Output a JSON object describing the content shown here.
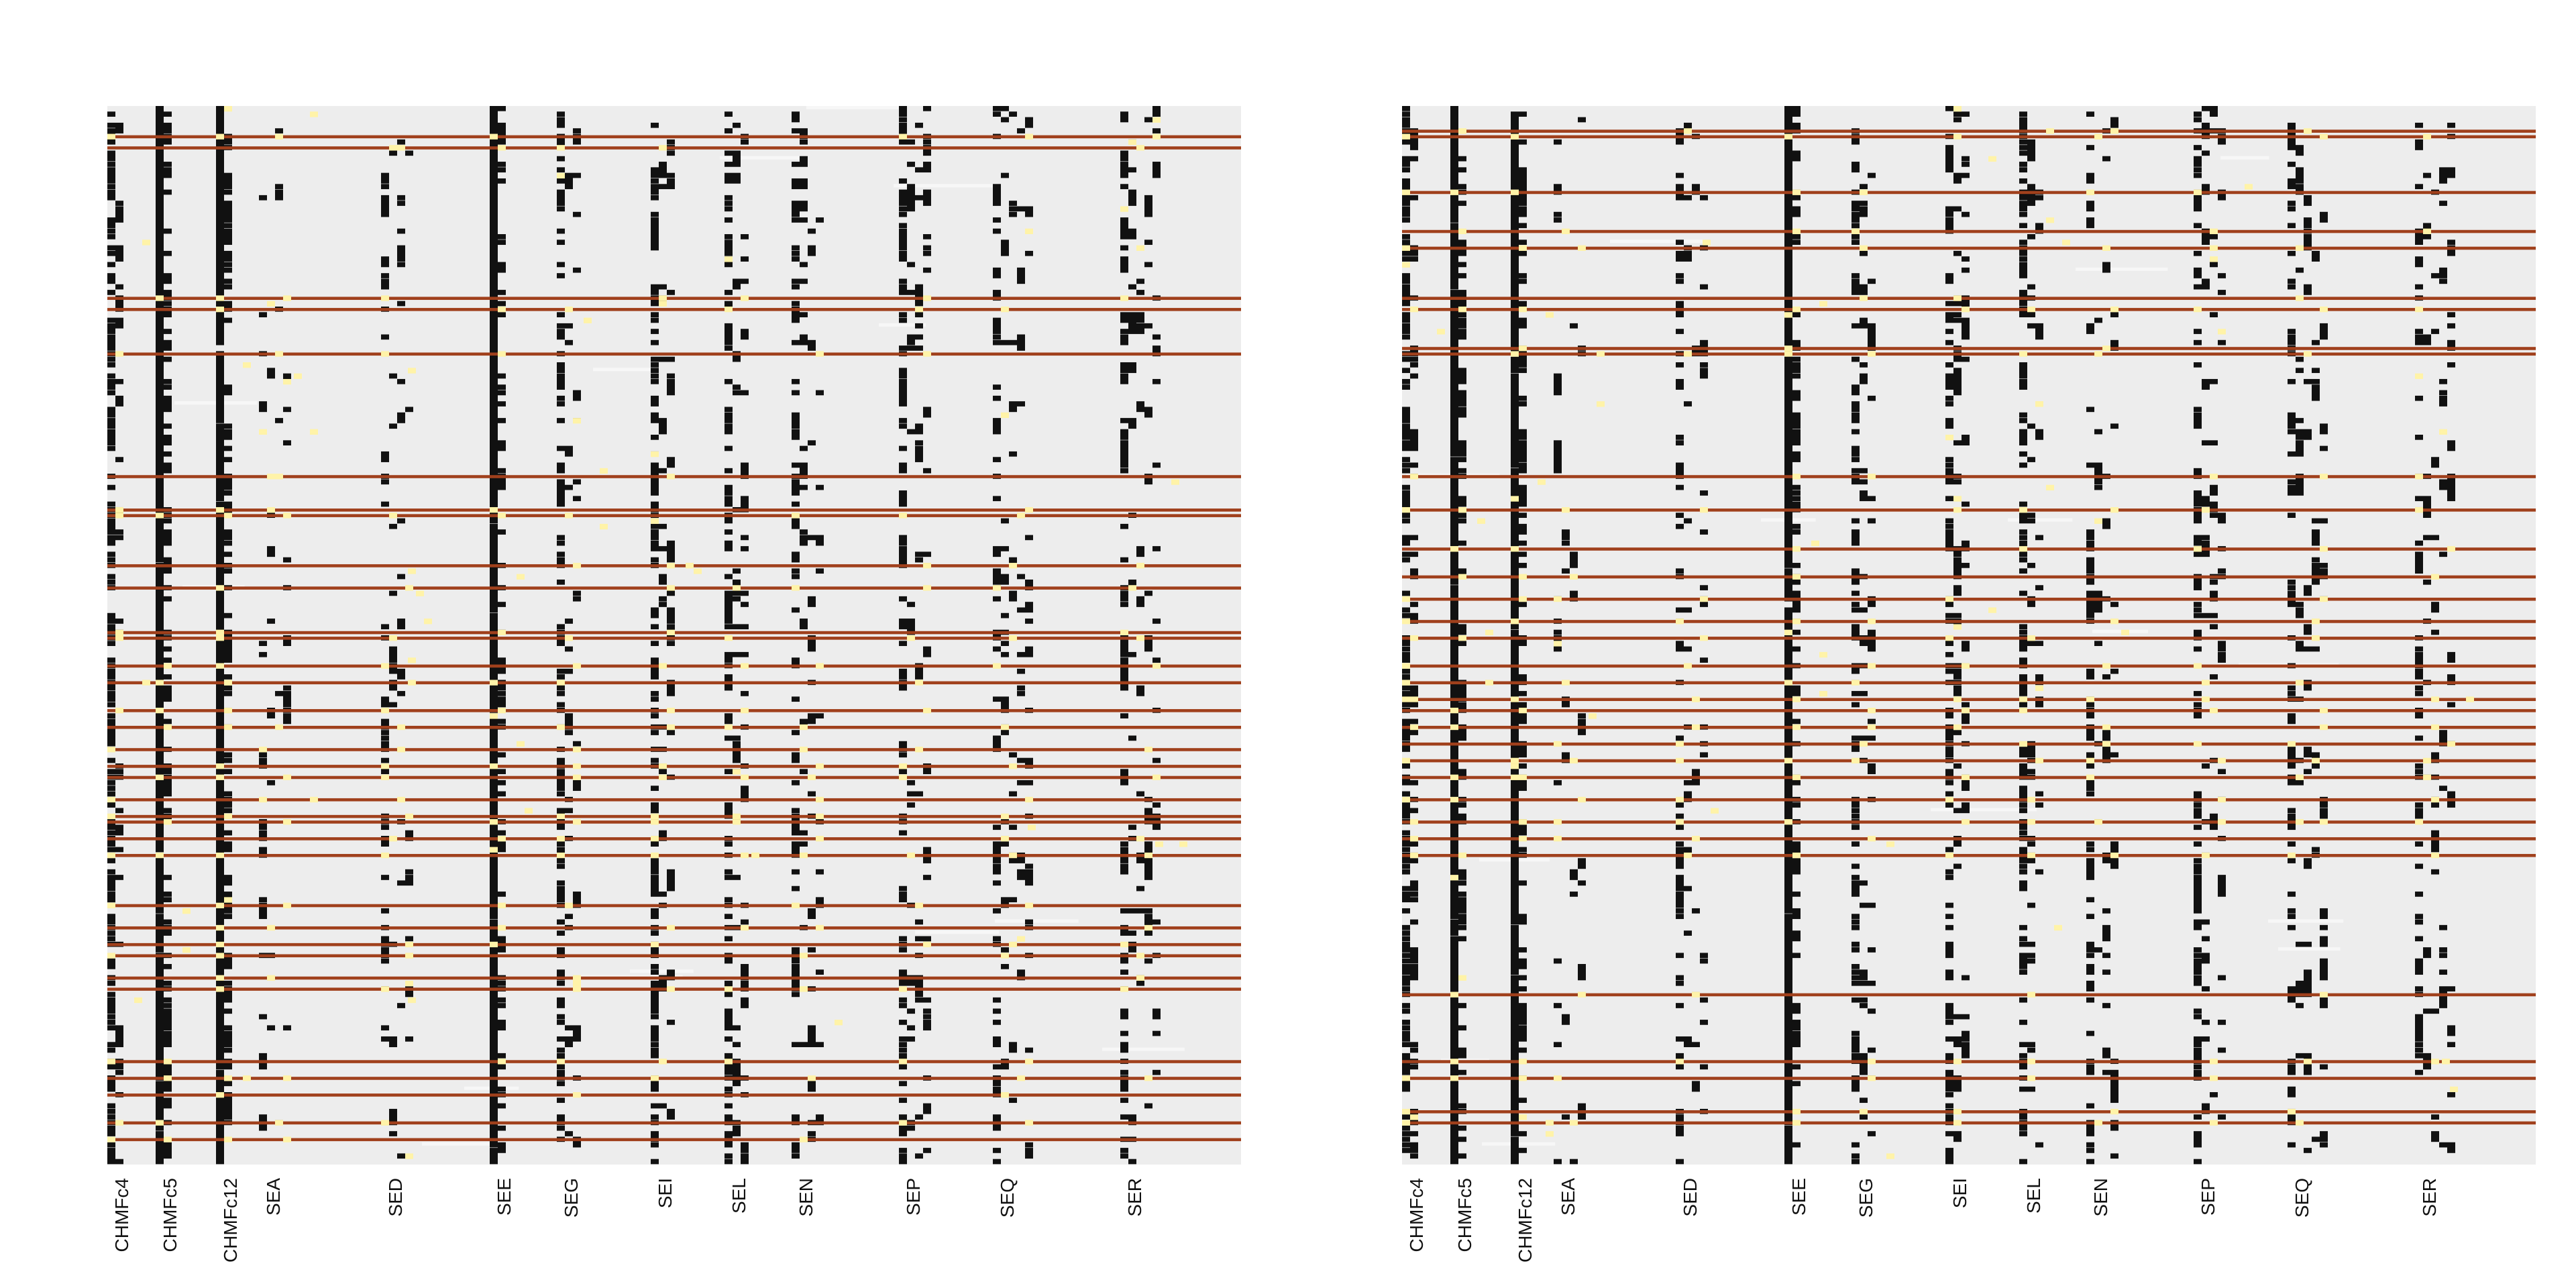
{
  "chart_data": [
    {
      "type": "heatmap",
      "panel": "left",
      "xlabel": "",
      "ylabel": "",
      "n_rows": 190,
      "columns": [
        {
          "label": "CHMFc4",
          "width": 2,
          "density": 0.68
        },
        {
          "label": "CHMFc5",
          "width": 2,
          "density": 0.97
        },
        {
          "label": "CHMFc12",
          "width": 2,
          "density": 0.9
        },
        {
          "label": "SEA",
          "width": 4,
          "density": 0.12
        },
        {
          "label": "SED",
          "width": 4,
          "density": 0.22
        },
        {
          "label": "SEE",
          "width": 2,
          "density": 0.95
        },
        {
          "label": "SEG",
          "width": 3,
          "density": 0.38
        },
        {
          "label": "SEI",
          "width": 3,
          "density": 0.45
        },
        {
          "label": "SEL",
          "width": 3,
          "density": 0.42
        },
        {
          "label": "SEN",
          "width": 4,
          "density": 0.3
        },
        {
          "label": "SEP",
          "width": 4,
          "density": 0.35
        },
        {
          "label": "SEQ",
          "width": 5,
          "density": 0.3
        },
        {
          "label": "SER",
          "width": 5,
          "density": 0.3
        }
      ],
      "highlight_rows": [
        5,
        7,
        34,
        36,
        44,
        66,
        72,
        73,
        82,
        86,
        94,
        95,
        100,
        103,
        108,
        111,
        115,
        118,
        120,
        124,
        127,
        128,
        131,
        134,
        143,
        147,
        150,
        152,
        156,
        158,
        171,
        174,
        177,
        182,
        185
      ],
      "colors": {
        "background": "#ededed",
        "present": "#111111",
        "highlight": "#a0401c",
        "marker": "#fff3a8",
        "gap": "#f7f7f7"
      }
    },
    {
      "type": "heatmap",
      "panel": "right",
      "xlabel": "",
      "ylabel": "",
      "n_rows": 190,
      "columns": [
        {
          "label": "CHMFc4",
          "width": 2,
          "density": 0.68
        },
        {
          "label": "CHMFc5",
          "width": 2,
          "density": 0.97
        },
        {
          "label": "CHMFc12",
          "width": 2,
          "density": 0.9
        },
        {
          "label": "SEA",
          "width": 4,
          "density": 0.12
        },
        {
          "label": "SED",
          "width": 4,
          "density": 0.22
        },
        {
          "label": "SEE",
          "width": 2,
          "density": 0.95
        },
        {
          "label": "SEG",
          "width": 3,
          "density": 0.38
        },
        {
          "label": "SEI",
          "width": 3,
          "density": 0.45
        },
        {
          "label": "SEL",
          "width": 3,
          "density": 0.42
        },
        {
          "label": "SEN",
          "width": 4,
          "density": 0.3
        },
        {
          "label": "SEP",
          "width": 4,
          "density": 0.35
        },
        {
          "label": "SEQ",
          "width": 5,
          "density": 0.3
        },
        {
          "label": "SER",
          "width": 5,
          "density": 0.3
        }
      ],
      "highlight_rows": [
        4,
        5,
        15,
        22,
        25,
        34,
        36,
        43,
        44,
        66,
        72,
        79,
        84,
        88,
        92,
        95,
        100,
        103,
        106,
        108,
        111,
        114,
        117,
        120,
        124,
        128,
        131,
        134,
        159,
        171,
        174,
        180,
        182
      ],
      "colors": {
        "background": "#ededed",
        "present": "#111111",
        "highlight": "#a0401c",
        "marker": "#fff3a8",
        "gap": "#f7f7f7"
      }
    }
  ]
}
